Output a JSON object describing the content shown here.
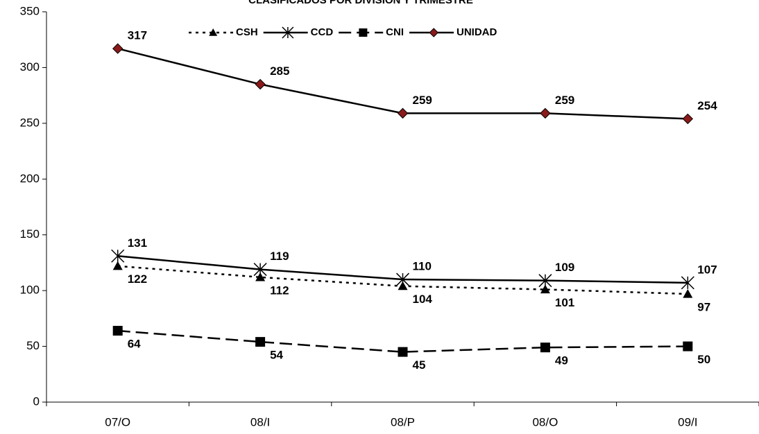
{
  "chart_data": {
    "type": "line",
    "title": "CLASIFICADOS POR DIVISIÓN Y TRIMESTRE",
    "categories": [
      "07/O",
      "08/I",
      "08/P",
      "08/O",
      "09/I"
    ],
    "series": [
      {
        "name": "CSH",
        "color": "#000000",
        "marker": "triangle",
        "marker_color": "#000000",
        "dash": "dotted",
        "label_position": "below",
        "values": [
          122,
          112,
          104,
          101,
          97
        ]
      },
      {
        "name": "CCD",
        "color": "#000000",
        "marker": "asterisk",
        "marker_color": "#000000",
        "dash": "solid",
        "label_position": "above",
        "values": [
          131,
          119,
          110,
          109,
          107
        ]
      },
      {
        "name": "CNI",
        "color": "#000000",
        "marker": "square",
        "marker_color": "#000000",
        "dash": "dashed",
        "label_position": "below",
        "values": [
          64,
          54,
          45,
          49,
          50
        ]
      },
      {
        "name": "UNIDAD",
        "color": "#000000",
        "marker": "diamond",
        "marker_color": "#8b1a1a",
        "dash": "solid",
        "label_position": "above",
        "values": [
          317,
          285,
          259,
          259,
          254
        ]
      }
    ],
    "ylim": [
      0,
      350
    ],
    "yticks": [
      0,
      50,
      100,
      150,
      200,
      250,
      300,
      350
    ],
    "grid": false,
    "legend": "top"
  }
}
